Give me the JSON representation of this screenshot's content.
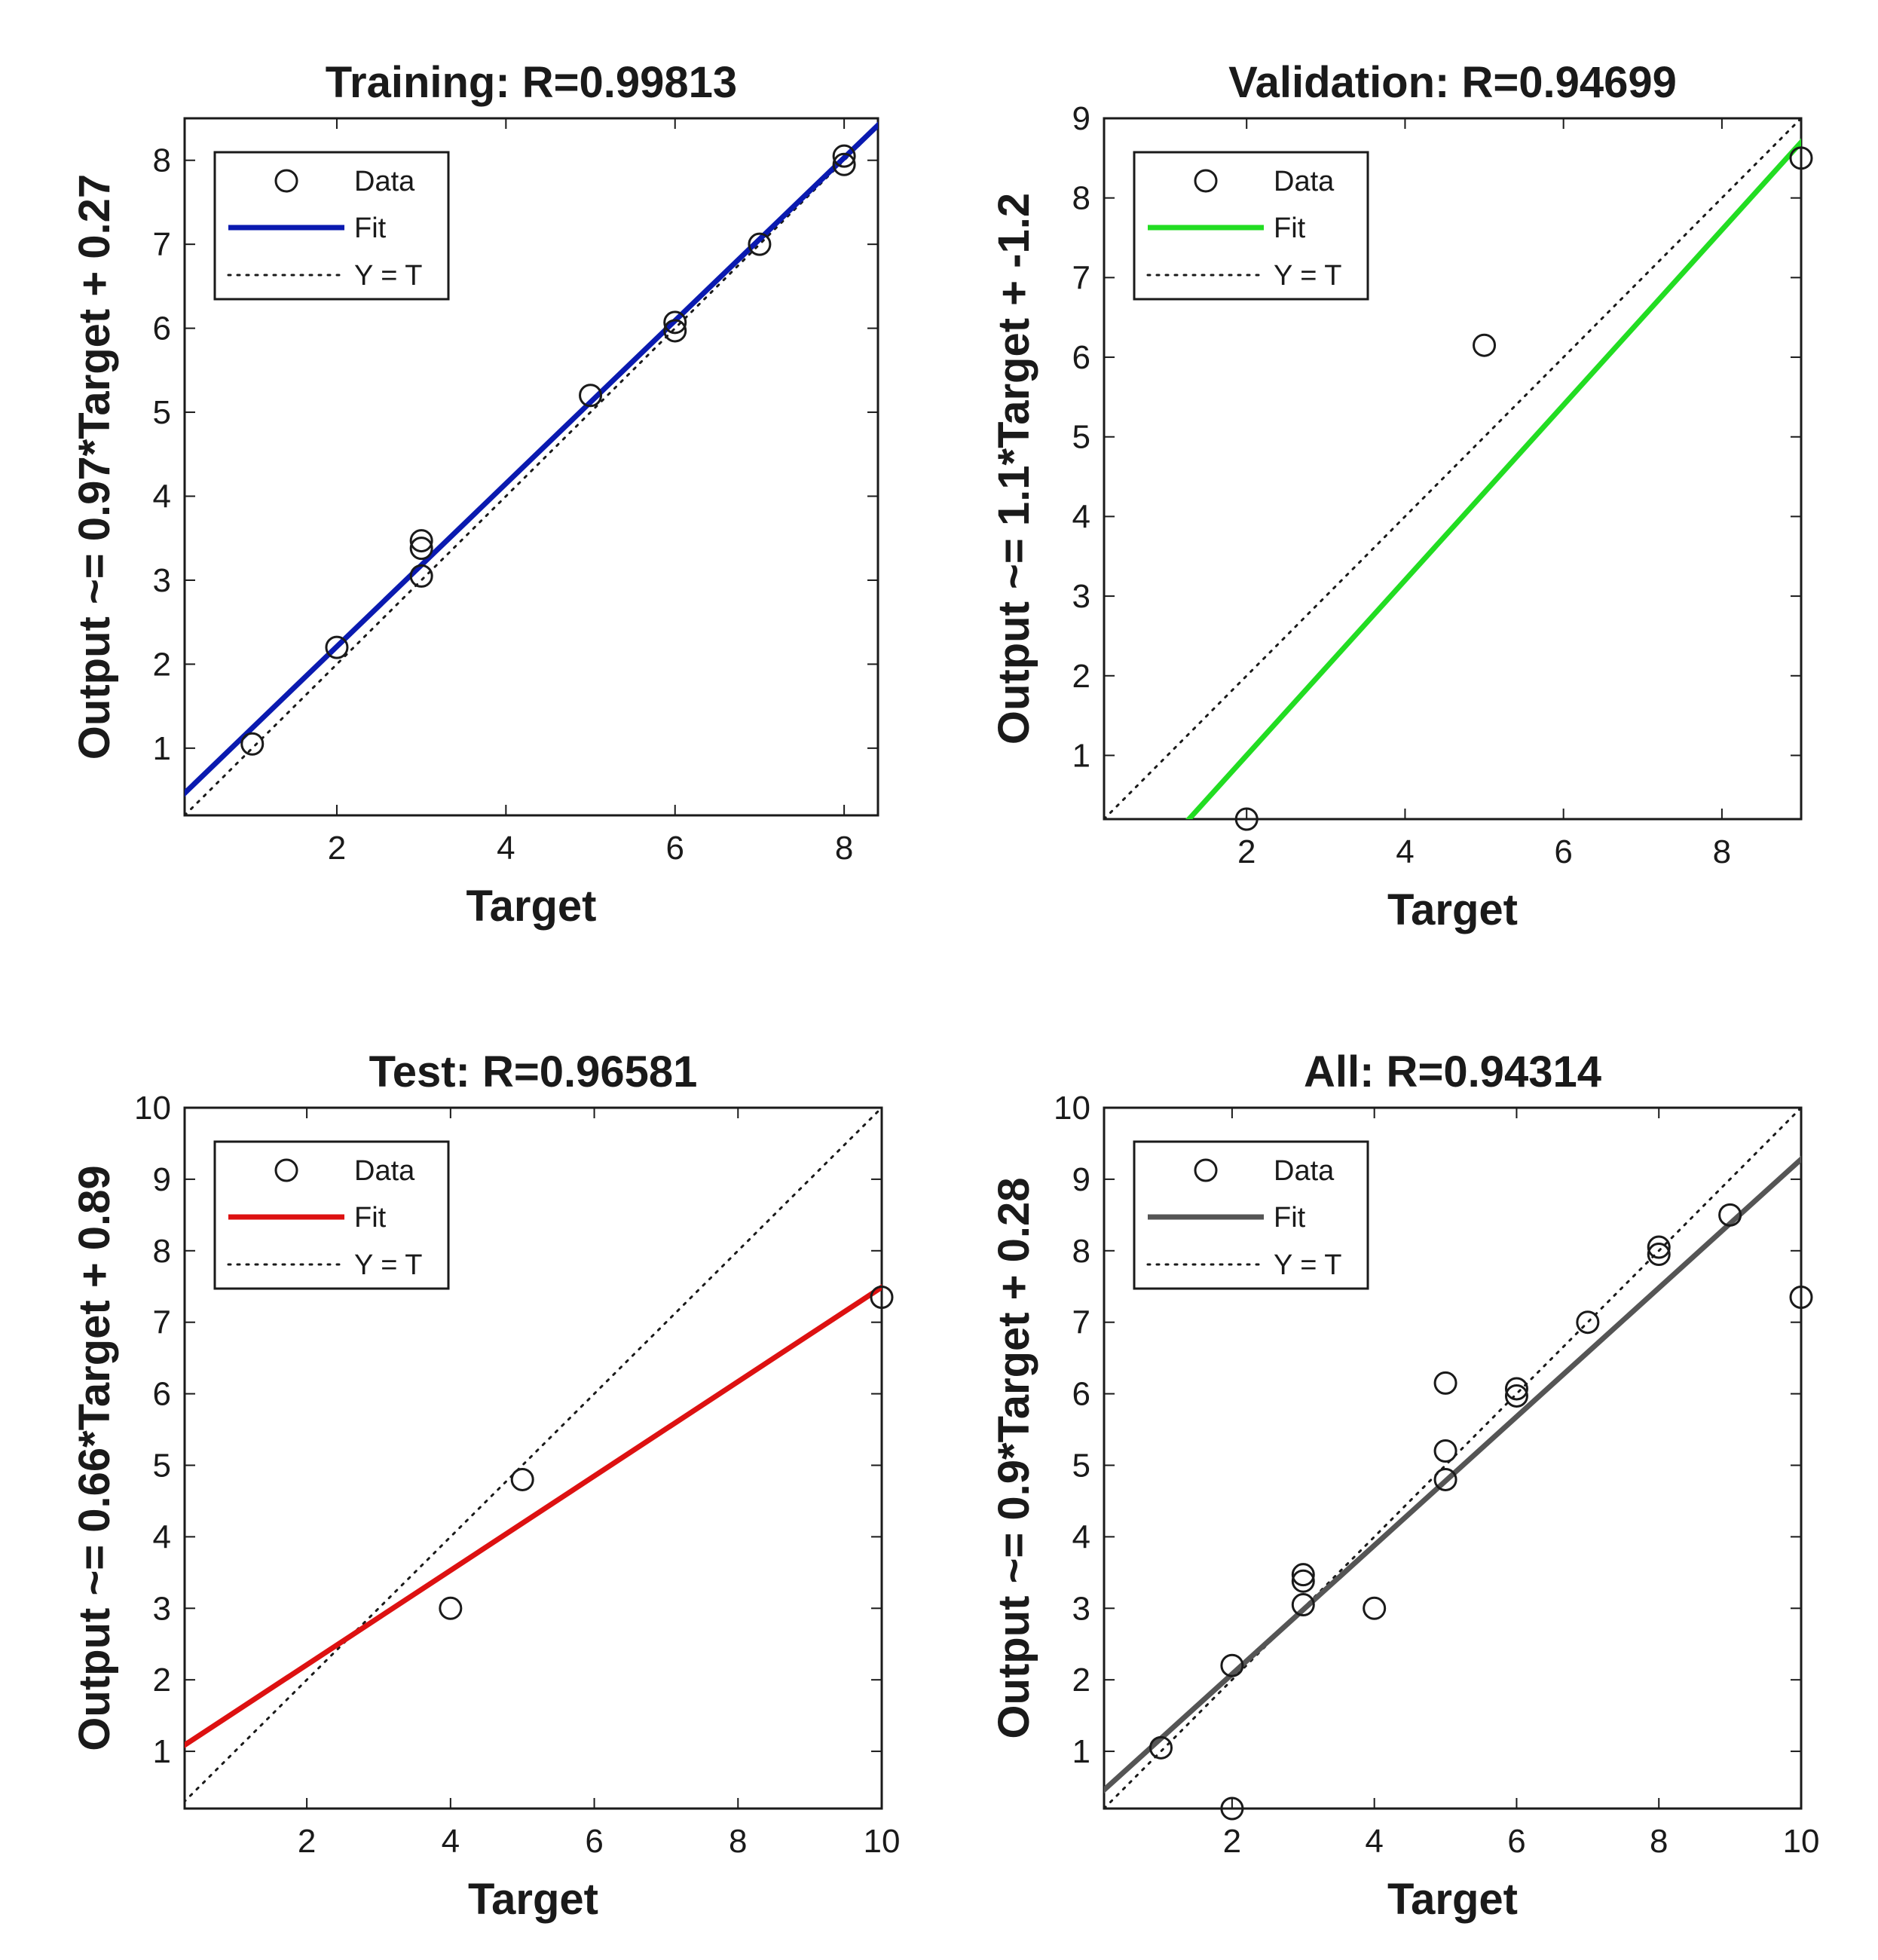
{
  "chart_data": [
    {
      "type": "scatter",
      "title": "Training: R=0.99813",
      "xlabel": "Target",
      "ylabel": "Output ~= 0.97*Target + 0.27",
      "xlim": [
        0.2,
        8.4
      ],
      "ylim": [
        0.2,
        8.5
      ],
      "xticks": [
        2,
        4,
        6,
        8
      ],
      "yticks": [
        1,
        2,
        3,
        4,
        5,
        6,
        7,
        8
      ],
      "legend": {
        "placement": "top-left",
        "entries": [
          "Data",
          "Fit",
          "Y = T"
        ]
      },
      "fit": {
        "slope": 0.97,
        "intercept": 0.27,
        "color": "#0a1ab0"
      },
      "points": [
        {
          "x": 1,
          "y": 1.05
        },
        {
          "x": 2,
          "y": 2.2
        },
        {
          "x": 3,
          "y": 3.05
        },
        {
          "x": 3,
          "y": 3.38
        },
        {
          "x": 3,
          "y": 3.47
        },
        {
          "x": 5,
          "y": 5.2
        },
        {
          "x": 6,
          "y": 5.97
        },
        {
          "x": 6,
          "y": 6.07
        },
        {
          "x": 7,
          "y": 7.0
        },
        {
          "x": 8,
          "y": 7.95
        },
        {
          "x": 8,
          "y": 8.05
        }
      ]
    },
    {
      "type": "scatter",
      "title": "Validation: R=0.94699",
      "xlabel": "Target",
      "ylabel": "Output ~= 1.1*Target + -1.2",
      "xlim": [
        0.2,
        9.0
      ],
      "ylim": [
        0.2,
        9.0
      ],
      "xticks": [
        2,
        4,
        6,
        8
      ],
      "yticks": [
        1,
        2,
        3,
        4,
        5,
        6,
        7,
        8,
        9
      ],
      "legend": {
        "placement": "top-left",
        "entries": [
          "Data",
          "Fit",
          "Y = T"
        ]
      },
      "fit": {
        "slope": 1.1,
        "intercept": -1.2,
        "color": "#22dd22"
      },
      "points": [
        {
          "x": 2,
          "y": 0.2
        },
        {
          "x": 5,
          "y": 6.15
        },
        {
          "x": 9,
          "y": 8.5
        }
      ]
    },
    {
      "type": "scatter",
      "title": "Test: R=0.96581",
      "xlabel": "Target",
      "ylabel": "Output ~= 0.66*Target + 0.89",
      "xlim": [
        0.3,
        10.0
      ],
      "ylim": [
        0.2,
        10.0
      ],
      "xticks": [
        2,
        4,
        6,
        8,
        10
      ],
      "yticks": [
        1,
        2,
        3,
        4,
        5,
        6,
        7,
        8,
        9,
        10
      ],
      "legend": {
        "placement": "top-left",
        "entries": [
          "Data",
          "Fit",
          "Y = T"
        ]
      },
      "fit": {
        "slope": 0.66,
        "intercept": 0.89,
        "color": "#dd1111"
      },
      "points": [
        {
          "x": 4,
          "y": 3.0
        },
        {
          "x": 5,
          "y": 4.8
        },
        {
          "x": 10,
          "y": 7.35
        }
      ]
    },
    {
      "type": "scatter",
      "title": "All: R=0.94314",
      "xlabel": "Target",
      "ylabel": "Output ~= 0.9*Target + 0.28",
      "xlim": [
        0.2,
        10.0
      ],
      "ylim": [
        0.2,
        10.0
      ],
      "xticks": [
        2,
        4,
        6,
        8,
        10
      ],
      "yticks": [
        1,
        2,
        3,
        4,
        5,
        6,
        7,
        8,
        9,
        10
      ],
      "legend": {
        "placement": "top-left",
        "entries": [
          "Data",
          "Fit",
          "Y = T"
        ]
      },
      "fit": {
        "slope": 0.9,
        "intercept": 0.28,
        "color": "#555555"
      },
      "points": [
        {
          "x": 1,
          "y": 1.05
        },
        {
          "x": 2,
          "y": 0.2
        },
        {
          "x": 2,
          "y": 2.2
        },
        {
          "x": 3,
          "y": 3.05
        },
        {
          "x": 3,
          "y": 3.38
        },
        {
          "x": 3,
          "y": 3.47
        },
        {
          "x": 4,
          "y": 3.0
        },
        {
          "x": 5,
          "y": 4.8
        },
        {
          "x": 5,
          "y": 5.2
        },
        {
          "x": 5,
          "y": 6.15
        },
        {
          "x": 6,
          "y": 5.97
        },
        {
          "x": 6,
          "y": 6.07
        },
        {
          "x": 7,
          "y": 7.0
        },
        {
          "x": 8,
          "y": 7.95
        },
        {
          "x": 8,
          "y": 8.05
        },
        {
          "x": 9,
          "y": 8.5
        },
        {
          "x": 10,
          "y": 7.35
        }
      ]
    }
  ]
}
